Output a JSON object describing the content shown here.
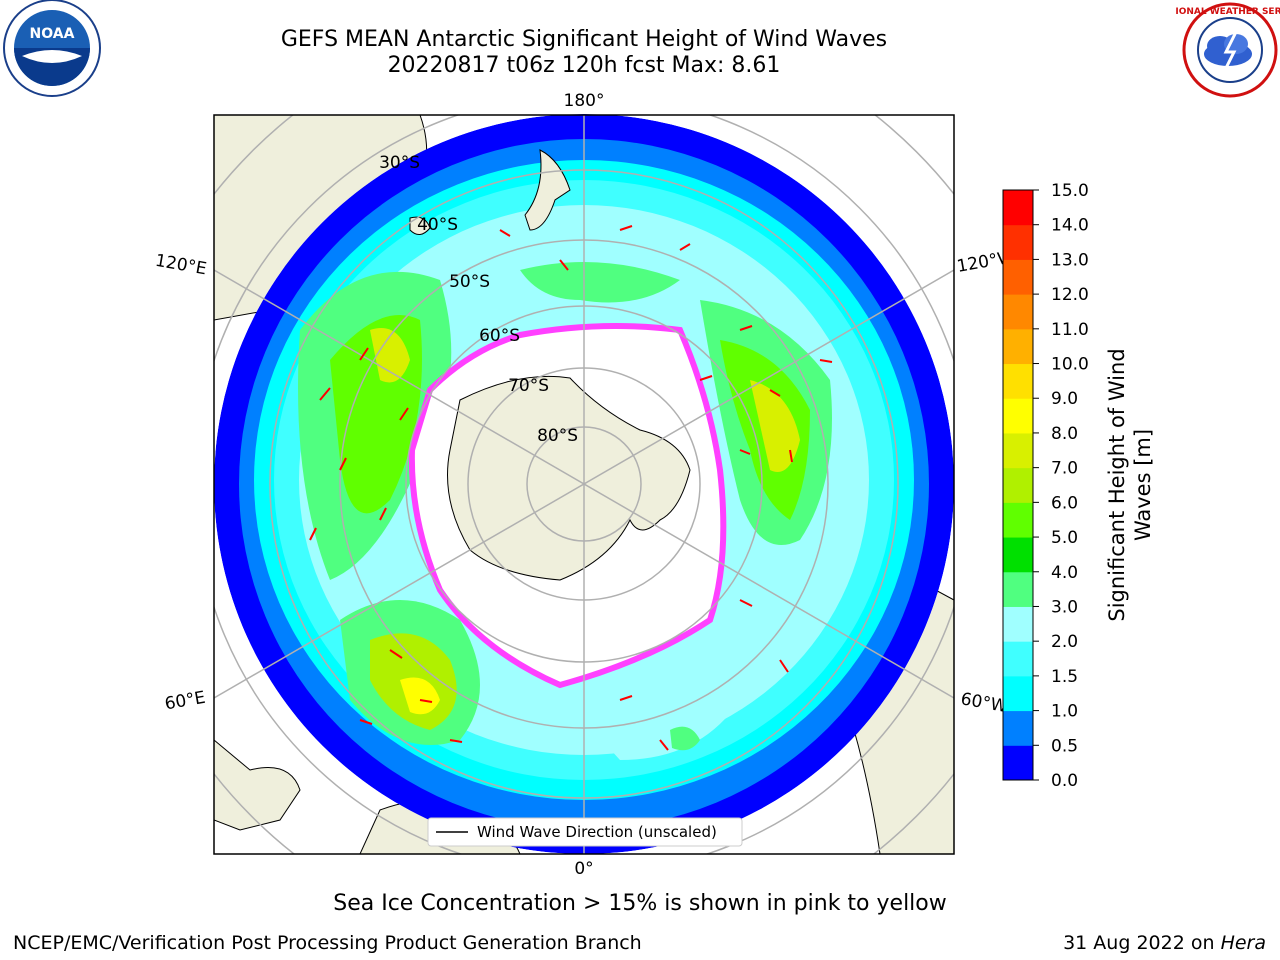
{
  "title": {
    "line1": "GEFS MEAN Antarctic Significant Height of Wind Waves",
    "line2": "20220817 t06z 120h fcst   Max: 8.61"
  },
  "logos": {
    "left": "noaa-logo",
    "left_text": "NOAA",
    "right": "nws-logo",
    "right_text": "NATIONAL WEATHER SERVICE"
  },
  "map": {
    "projection": "south-polar-stereographic",
    "longitude_labels": {
      "top": "180°",
      "bottom": "0°",
      "left_upper": "120°E",
      "left_lower": "60°E",
      "right_upper": "120°W",
      "right_lower": "60°W"
    },
    "latitude_labels": [
      "30°S",
      "40°S",
      "50°S",
      "60°S",
      "70°S",
      "80°S"
    ],
    "legend_label": "Wind Wave Direction (unscaled)"
  },
  "colorbar": {
    "label_line1": "Significant Height of Wind",
    "label_line2": "Waves [m]",
    "ticks": [
      "0.0",
      "0.5",
      "1.0",
      "1.5",
      "2.0",
      "3.0",
      "4.0",
      "5.0",
      "6.0",
      "7.0",
      "8.0",
      "9.0",
      "10.0",
      "11.0",
      "12.0",
      "13.0",
      "14.0",
      "15.0"
    ],
    "colors": [
      "#0000ff",
      "#0080ff",
      "#00ffff",
      "#40ffff",
      "#a0ffff",
      "#50ff80",
      "#00e000",
      "#60ff00",
      "#b0f000",
      "#d8f000",
      "#ffff00",
      "#ffe000",
      "#ffb000",
      "#ff8800",
      "#ff6000",
      "#ff3000",
      "#ff0000"
    ]
  },
  "notes": {
    "sea_ice": "Sea Ice Concentration > 15% is shown in pink to yellow"
  },
  "footer": {
    "left": "NCEP/EMC/Verification Post Processing Product Generation Branch",
    "right_prefix": "31 Aug 2022 on ",
    "right_host": "Hera"
  }
}
